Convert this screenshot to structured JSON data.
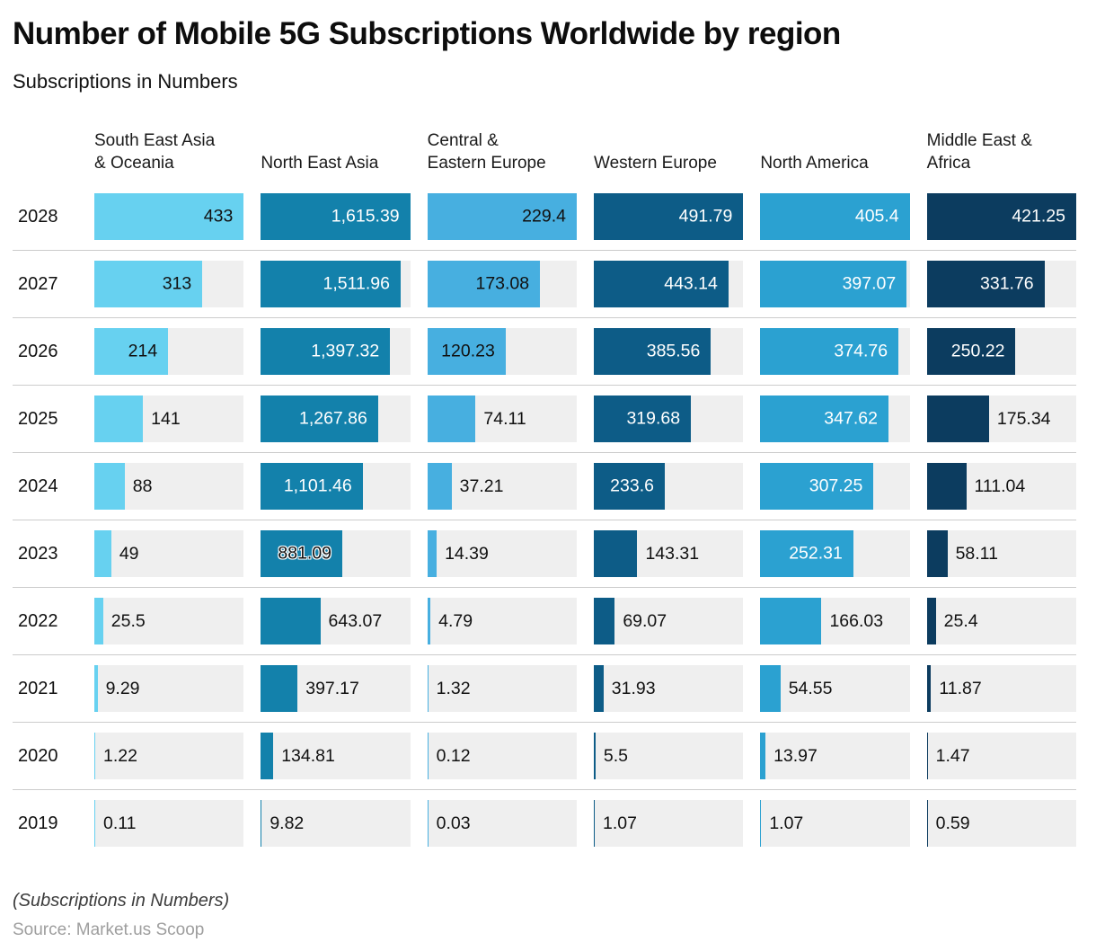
{
  "title": "Number of Mobile 5G Subscriptions Worldwide by region",
  "subtitle": "Subscriptions in Numbers",
  "footer": {
    "note": "(Subscriptions in Numbers)",
    "source": "Source: Market.us Scoop"
  },
  "colors": {
    "track": "#efefef",
    "divider": "#cccccc"
  },
  "chart_data": {
    "type": "bar",
    "orientation": "horizontal",
    "note": "Each region column is scaled independently; the 2028 value fills the full track width.",
    "categories": [
      "2028",
      "2027",
      "2026",
      "2025",
      "2024",
      "2023",
      "2022",
      "2021",
      "2020",
      "2019"
    ],
    "series": [
      {
        "name": "South East Asia & Oceania",
        "header": "South East Asia\n& Oceania",
        "color": "#67d1f0",
        "inside_label_color": "#111111",
        "values": [
          433,
          313,
          214,
          141,
          88,
          49,
          25.5,
          9.29,
          1.22,
          0.11
        ],
        "labels": [
          "433",
          "313",
          "214",
          "141",
          "88",
          "49",
          "25.5",
          "9.29",
          "1.22",
          "0.11"
        ]
      },
      {
        "name": "North East Asia",
        "header": "North East Asia",
        "color": "#1381ab",
        "inside_label_color": "#ffffff",
        "values": [
          1615.39,
          1511.96,
          1397.32,
          1267.86,
          1101.46,
          881.09,
          643.07,
          397.17,
          134.81,
          9.82
        ],
        "labels": [
          "1,615.39",
          "1,511.96",
          "1,397.32",
          "1,267.86",
          "1,101.46",
          "881.09",
          "643.07",
          "397.17",
          "134.81",
          "9.82"
        ]
      },
      {
        "name": "Central & Eastern Europe",
        "header": "Central &\nEastern Europe",
        "color": "#47afe0",
        "inside_label_color": "#111111",
        "values": [
          229.4,
          173.08,
          120.23,
          74.11,
          37.21,
          14.39,
          4.79,
          1.32,
          0.12,
          0.03
        ],
        "labels": [
          "229.4",
          "173.08",
          "120.23",
          "74.11",
          "37.21",
          "14.39",
          "4.79",
          "1.32",
          "0.12",
          "0.03"
        ]
      },
      {
        "name": "Western Europe",
        "header": "Western Europe",
        "color": "#0d5c87",
        "inside_label_color": "#ffffff",
        "values": [
          491.79,
          443.14,
          385.56,
          319.68,
          233.6,
          143.31,
          69.07,
          31.93,
          5.5,
          1.07
        ],
        "labels": [
          "491.79",
          "443.14",
          "385.56",
          "319.68",
          "233.6",
          "143.31",
          "69.07",
          "31.93",
          "5.5",
          "1.07"
        ]
      },
      {
        "name": "North America",
        "header": "North America",
        "color": "#2ba1d1",
        "inside_label_color": "#ffffff",
        "values": [
          405.4,
          397.07,
          374.76,
          347.62,
          307.25,
          252.31,
          166.03,
          54.55,
          13.97,
          1.07
        ],
        "labels": [
          "405.4",
          "397.07",
          "374.76",
          "347.62",
          "307.25",
          "252.31",
          "166.03",
          "54.55",
          "13.97",
          "1.07"
        ]
      },
      {
        "name": "Middle East & Africa",
        "header": "Middle East &\nAfrica",
        "color": "#0c3c5f",
        "inside_label_color": "#ffffff",
        "values": [
          421.25,
          331.76,
          250.22,
          175.34,
          111.04,
          58.11,
          25.4,
          11.87,
          1.47,
          0.59
        ],
        "labels": [
          "421.25",
          "331.76",
          "250.22",
          "175.34",
          "111.04",
          "58.11",
          "25.4",
          "11.87",
          "1.47",
          "0.59"
        ]
      }
    ],
    "highlight": {
      "year": "2023",
      "series": "North East Asia"
    },
    "inside_label_threshold": 0.45,
    "legend_position": "none",
    "grid": "row-dividers"
  }
}
